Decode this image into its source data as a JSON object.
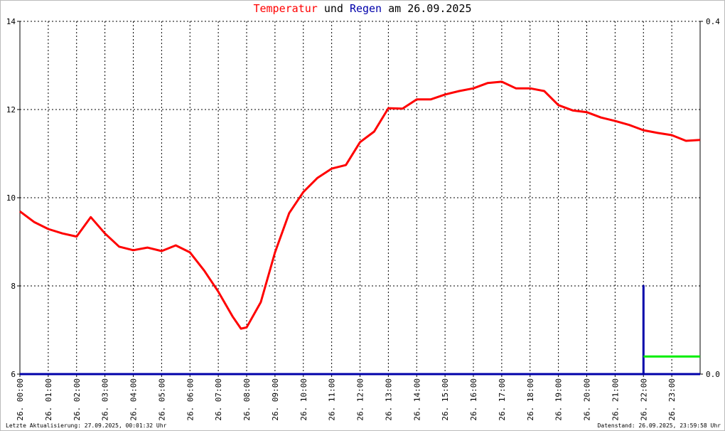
{
  "chart_data": {
    "type": "line",
    "title_and": "und",
    "title_date": "am 26.09.2025",
    "footer_left": "Letzte Aktualisierung: 27.09.2025, 00:01:32 Uhr",
    "footer_right": "Datenstand: 26.09.2025, 23:59:58 Uhr",
    "xlim": [
      0,
      24
    ],
    "xticks": [
      {
        "value": 0,
        "label": "26. 00:00"
      },
      {
        "value": 1,
        "label": "26. 01:00"
      },
      {
        "value": 2,
        "label": "26. 02:00"
      },
      {
        "value": 3,
        "label": "26. 03:00"
      },
      {
        "value": 4,
        "label": "26. 04:00"
      },
      {
        "value": 5,
        "label": "26. 05:00"
      },
      {
        "value": 6,
        "label": "26. 06:00"
      },
      {
        "value": 7,
        "label": "26. 07:00"
      },
      {
        "value": 8,
        "label": "26. 08:00"
      },
      {
        "value": 9,
        "label": "26. 09:00"
      },
      {
        "value": 10,
        "label": "26. 10:00"
      },
      {
        "value": 11,
        "label": "26. 11:00"
      },
      {
        "value": 12,
        "label": "26. 12:00"
      },
      {
        "value": 13,
        "label": "26. 13:00"
      },
      {
        "value": 14,
        "label": "26. 14:00"
      },
      {
        "value": 15,
        "label": "26. 15:00"
      },
      {
        "value": 16,
        "label": "26. 16:00"
      },
      {
        "value": 17,
        "label": "26. 17:00"
      },
      {
        "value": 18,
        "label": "26. 18:00"
      },
      {
        "value": 19,
        "label": "26. 19:00"
      },
      {
        "value": 20,
        "label": "26. 20:00"
      },
      {
        "value": 21,
        "label": "26. 21:00"
      },
      {
        "value": 22,
        "label": "26. 22:00"
      },
      {
        "value": 23,
        "label": "26. 23:00"
      }
    ],
    "ylim": [
      6,
      14
    ],
    "yticks": [
      6,
      8,
      10,
      12,
      14
    ],
    "y2lim": [
      0,
      0.4
    ],
    "y2ticks": [
      {
        "value": 0,
        "label": "0.0"
      },
      {
        "value": 0.4,
        "label": "0.4"
      }
    ],
    "grid": true,
    "series": [
      {
        "name": "Temperatur",
        "color": "#ff0000",
        "x": [
          0,
          0.5,
          1,
          1.5,
          2,
          2.5,
          3,
          3.5,
          4,
          4.5,
          5,
          5.5,
          6,
          6.5,
          7,
          7.5,
          7.8,
          8,
          8.5,
          9,
          9.5,
          10,
          10.5,
          11,
          11.5,
          12,
          12.5,
          13,
          13.5,
          14,
          14.5,
          15,
          15.5,
          16,
          16.5,
          17,
          17.5,
          18,
          18.5,
          19,
          19.5,
          20,
          20.5,
          21,
          21.5,
          22,
          22.5,
          23,
          23.5,
          24
        ],
        "values": [
          9.69,
          9.45,
          9.29,
          9.19,
          9.12,
          9.56,
          9.19,
          8.89,
          8.81,
          8.87,
          8.79,
          8.92,
          8.76,
          8.35,
          7.87,
          7.31,
          7.03,
          7.06,
          7.63,
          8.76,
          9.65,
          10.13,
          10.45,
          10.66,
          10.74,
          11.26,
          11.5,
          12.03,
          12.02,
          12.23,
          12.23,
          12.34,
          12.42,
          12.48,
          12.6,
          12.63,
          12.48,
          12.48,
          12.42,
          12.1,
          11.98,
          11.94,
          11.82,
          11.74,
          11.65,
          11.53,
          11.47,
          11.42,
          11.29,
          11.31
        ]
      },
      {
        "name": "Regen",
        "color": "#0000aa",
        "axis": "y2",
        "x": [
          0,
          22,
          22,
          22,
          24
        ],
        "values": [
          0,
          0,
          0.1,
          0,
          0
        ]
      },
      {
        "color": "#00ee00",
        "axis": "y2",
        "x": [
          22,
          24
        ],
        "values": [
          0.02,
          0.02
        ]
      }
    ]
  }
}
